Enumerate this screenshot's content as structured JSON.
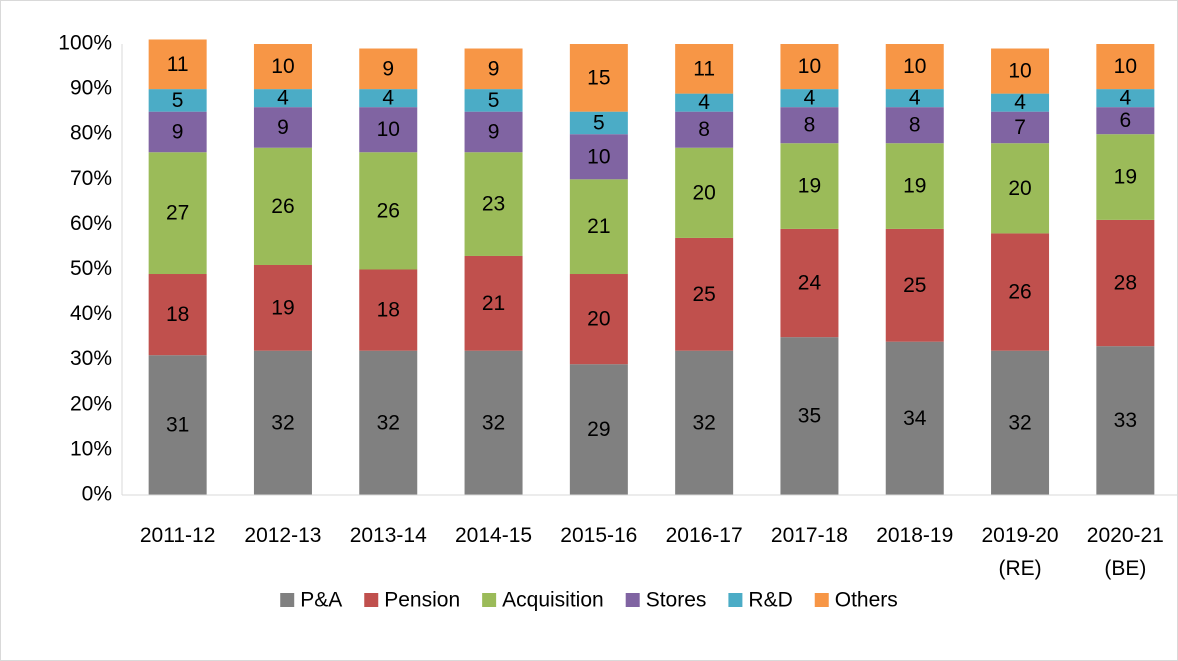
{
  "chart_data": {
    "type": "bar",
    "stacked": true,
    "categories": [
      "2011-12",
      "2012-13",
      "2013-14",
      "2014-15",
      "2015-16",
      "2016-17",
      "2017-18",
      "2018-19",
      "2019-20\n(RE)",
      "2020-21\n(BE)"
    ],
    "series": [
      {
        "name": "P&A",
        "color": "#808080",
        "values": [
          31,
          32,
          32,
          32,
          29,
          32,
          35,
          34,
          32,
          33
        ]
      },
      {
        "name": "Pension",
        "color": "#c0504d",
        "values": [
          18,
          19,
          18,
          21,
          20,
          25,
          24,
          25,
          26,
          28
        ]
      },
      {
        "name": "Acquisition",
        "color": "#9bbb59",
        "values": [
          27,
          26,
          26,
          23,
          21,
          20,
          19,
          19,
          20,
          19
        ]
      },
      {
        "name": "Stores",
        "color": "#8064a2",
        "values": [
          9,
          9,
          10,
          9,
          10,
          8,
          8,
          8,
          7,
          6
        ]
      },
      {
        "name": "R&D",
        "color": "#4bacc6",
        "values": [
          5,
          4,
          4,
          5,
          5,
          4,
          4,
          4,
          4,
          4
        ]
      },
      {
        "name": "Others",
        "color": "#f79646",
        "values": [
          11,
          10,
          9,
          9,
          15,
          11,
          10,
          10,
          10,
          10
        ]
      }
    ],
    "ylim": [
      0,
      100
    ],
    "yticks": [
      {
        "value": 0,
        "label": "0%"
      },
      {
        "value": 10,
        "label": "10%"
      },
      {
        "value": 20,
        "label": "20%"
      },
      {
        "value": 30,
        "label": "30%"
      },
      {
        "value": 40,
        "label": "40%"
      },
      {
        "value": 50,
        "label": "50%"
      },
      {
        "value": 60,
        "label": "60%"
      },
      {
        "value": 70,
        "label": "70%"
      },
      {
        "value": 80,
        "label": "80%"
      },
      {
        "value": 90,
        "label": "90%"
      },
      {
        "value": 100,
        "label": "100%"
      }
    ],
    "grid": false,
    "legend": "bottom"
  }
}
